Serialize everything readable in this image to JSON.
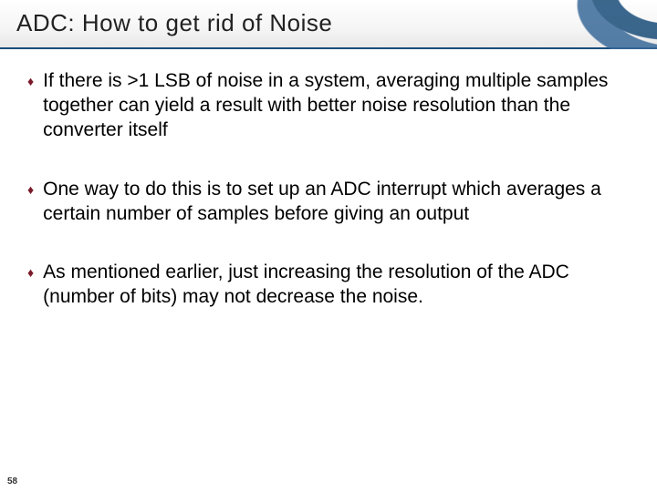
{
  "slide": {
    "title": "ADC: How to get rid of Noise",
    "page_number": "58",
    "bullet_glyph": "♦",
    "bullets": [
      "If there is >1 LSB of noise in a system, averaging multiple samples together can yield a result with better noise resolution than the converter itself",
      "One way to do this is to set up an ADC interrupt which averages a certain number of samples before giving an output",
      "As mentioned earlier, just increasing the resolution of the ADC (number of bits) may not decrease the noise."
    ],
    "colors": {
      "title_underline": "#1a4d7a",
      "bullet_icon": "#7a1a2a",
      "text": "#000000",
      "background": "#ffffff"
    },
    "fonts": {
      "title_family": "Impact",
      "title_size_pt": 20,
      "body_family": "Arial",
      "body_size_pt": 16
    }
  }
}
